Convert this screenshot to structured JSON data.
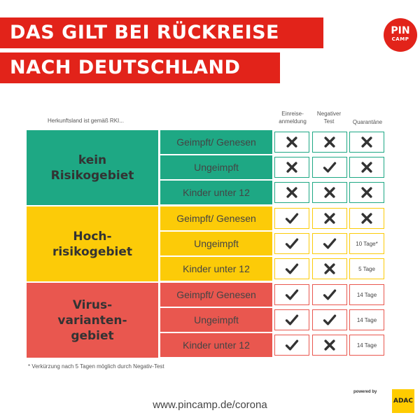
{
  "title": {
    "line1": "DAS GILT BEI RÜCKREISE",
    "line2": "NACH DEUTSCHLAND"
  },
  "logo": {
    "line1": "PIN",
    "line2": "CAMP"
  },
  "table": {
    "origin_label": "Herkunftsland ist gemäß RKI...",
    "columns": {
      "einreise": "Einreise-\nanmeldung",
      "test": "Negativer\nTest",
      "quarantine": "Quarantäne"
    },
    "groups": [
      {
        "name": "kein\nRisikogebiet",
        "color": "#1ea884",
        "rows": [
          {
            "label": "Geimpft/ Genesen",
            "einreise": "cross",
            "test": "cross",
            "quarantine": "cross"
          },
          {
            "label": "Ungeimpft",
            "einreise": "cross",
            "test": "check",
            "quarantine": "cross"
          },
          {
            "label": "Kinder unter 12",
            "einreise": "cross",
            "test": "cross",
            "quarantine": "cross"
          }
        ]
      },
      {
        "name": "Hoch-\nrisikogebiet",
        "color": "#fccb08",
        "rows": [
          {
            "label": "Geimpft/ Genesen",
            "einreise": "check",
            "test": "cross",
            "quarantine": "cross"
          },
          {
            "label": "Ungeimpft",
            "einreise": "check",
            "test": "check",
            "quarantine": "10 Tage*"
          },
          {
            "label": "Kinder unter 12",
            "einreise": "check",
            "test": "cross",
            "quarantine": "5 Tage"
          }
        ]
      },
      {
        "name": "Virus-\nvarianten-\ngebiet",
        "color": "#e9574f",
        "rows": [
          {
            "label": "Geimpft/ Genesen",
            "einreise": "check",
            "test": "check",
            "quarantine": "14 Tage"
          },
          {
            "label": "Ungeimpft",
            "einreise": "check",
            "test": "check",
            "quarantine": "14 Tage"
          },
          {
            "label": "Kinder unter 12",
            "einreise": "check",
            "test": "cross",
            "quarantine": "14 Tage"
          }
        ]
      }
    ]
  },
  "footnote": "* Verkürzung nach 5 Tagen möglich durch Negativ-Test",
  "url": "www.pincamp.de/corona",
  "powered_by": "powered by",
  "adac": "ADAC",
  "colors": {
    "banner": "#e2231a",
    "check": "#333333",
    "cross": "#333333"
  }
}
